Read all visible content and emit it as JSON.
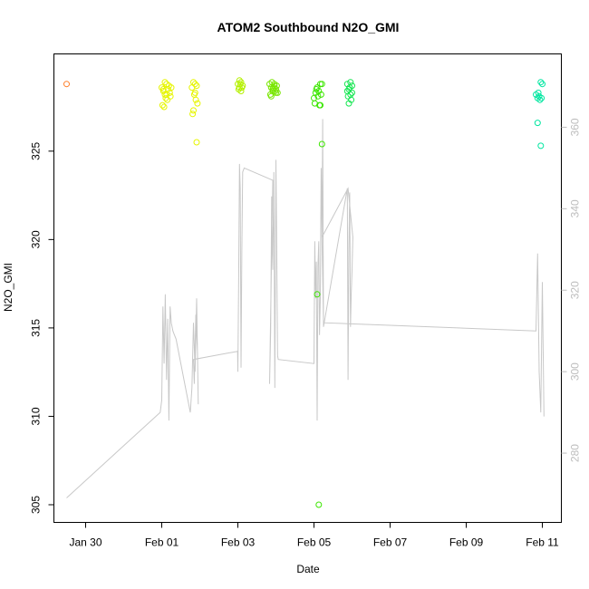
{
  "chart_data": {
    "type": "scatter",
    "title": "ATOM2 Southbound N2O_GMI",
    "xlabel": "Date",
    "ylabel": "N2O_GMI",
    "x_axis": {
      "type": "date",
      "range": [
        "2017-01-29T04:00",
        "2017-02-11T12:00"
      ],
      "ticks": [
        "Jan 30",
        "Feb 01",
        "Feb 03",
        "Feb 05",
        "Feb 07",
        "Feb 09",
        "Feb 11"
      ],
      "tick_dates": [
        "2017-01-30",
        "2017-02-01",
        "2017-02-03",
        "2017-02-05",
        "2017-02-07",
        "2017-02-09",
        "2017-02-11"
      ]
    },
    "y_axis_left": {
      "range": [
        304,
        330.5
      ],
      "ticks": [
        "305",
        "310",
        "315",
        "320",
        "325"
      ]
    },
    "y_axis_right": {
      "range": [
        263,
        378
      ],
      "ticks": [
        "280",
        "300",
        "320",
        "340",
        "360"
      ],
      "color": "#bdbdbd"
    },
    "grid": false,
    "legend": "none",
    "colors": {
      "orange": "#ff7f2a",
      "yellow": "#e6f500",
      "yellow_green": "#b4f000",
      "green": "#3ce600",
      "green2": "#14e650",
      "aqua": "#00e6a0",
      "line": "#c8c8c8"
    },
    "series": [
      {
        "type": "points",
        "color": "#ff7f2a",
        "x": [
          "2017-01-29T12:00"
        ],
        "y": [
          328.8
        ]
      },
      {
        "type": "points",
        "color": "#e6f500",
        "x": [
          "2017-02-01T00:00",
          "2017-02-01T01:00",
          "2017-02-01T02:00",
          "2017-02-01T03:00",
          "2017-02-01T04:00",
          "2017-02-01T05:00",
          "2017-02-01T06:00",
          "2017-02-01T02:30",
          "2017-02-01T03:30",
          "2017-02-01T01:30",
          "2017-02-01T04:30",
          "2017-02-01T00:30",
          "2017-02-01T05:30",
          "2017-02-01T02:00",
          "2017-02-01T01:00",
          "2017-02-01T03:00"
        ],
        "y": [
          328.6,
          328.4,
          328.2,
          328.8,
          328.5,
          328.3,
          328.6,
          328.0,
          327.9,
          327.5,
          328.7,
          327.6,
          328.1,
          328.9,
          328.5,
          328.2
        ]
      },
      {
        "type": "points",
        "color": "#e6f500",
        "x": [
          "2017-02-01T19:00",
          "2017-02-01T20:00",
          "2017-02-01T21:00",
          "2017-02-01T22:00",
          "2017-02-01T20:30",
          "2017-02-01T21:30",
          "2017-02-01T19:30",
          "2017-02-01T22:30",
          "2017-02-01T20:00",
          "2017-02-01T21:00",
          "2017-02-01T22:00"
        ],
        "y": [
          328.6,
          328.9,
          328.3,
          328.7,
          328.2,
          327.9,
          327.1,
          327.7,
          327.3,
          328.8,
          325.5
        ]
      },
      {
        "type": "points",
        "color": "#b4f000",
        "x": [
          "2017-02-03T00:00",
          "2017-02-03T01:00",
          "2017-02-03T02:00",
          "2017-02-03T03:00",
          "2017-02-03T00:30",
          "2017-02-03T01:30",
          "2017-02-03T02:30",
          "2017-02-03T01:00",
          "2017-02-03T02:00"
        ],
        "y": [
          328.8,
          328.6,
          328.9,
          328.7,
          328.5,
          328.8,
          328.6,
          329.0,
          328.4
        ]
      },
      {
        "type": "points",
        "color": "#78e600",
        "x": [
          "2017-02-03T20:00",
          "2017-02-03T21:00",
          "2017-02-03T22:00",
          "2017-02-03T23:00",
          "2017-02-04T00:00",
          "2017-02-04T01:00",
          "2017-02-03T20:30",
          "2017-02-03T21:30",
          "2017-02-03T22:30",
          "2017-02-03T23:30",
          "2017-02-04T00:30",
          "2017-02-03T21:00",
          "2017-02-03T22:00",
          "2017-02-03T23:00",
          "2017-02-04T00:00"
        ],
        "y": [
          328.8,
          328.6,
          328.4,
          328.7,
          328.5,
          328.3,
          328.2,
          328.9,
          328.6,
          328.4,
          328.7,
          328.1,
          328.5,
          328.8,
          328.3
        ]
      },
      {
        "type": "points",
        "color": "#3ce600",
        "x": [
          "2017-02-05T00:00",
          "2017-02-05T01:00",
          "2017-02-05T02:00",
          "2017-02-05T03:00",
          "2017-02-05T04:00",
          "2017-02-05T05:00",
          "2017-02-05T00:30",
          "2017-02-05T01:30",
          "2017-02-05T02:30",
          "2017-02-05T03:30",
          "2017-02-05T04:30",
          "2017-02-05T02:00",
          "2017-02-05T03:00",
          "2017-02-05T05:00",
          "2017-02-05T04:00"
        ],
        "y": [
          328.0,
          328.3,
          328.6,
          328.4,
          328.8,
          328.8,
          327.7,
          328.5,
          328.1,
          327.6,
          328.2,
          316.9,
          305.0,
          325.4,
          327.6
        ]
      },
      {
        "type": "points",
        "color": "#14e650",
        "x": [
          "2017-02-05T21:00",
          "2017-02-05T22:00",
          "2017-02-05T23:00",
          "2017-02-06T00:00",
          "2017-02-05T21:30",
          "2017-02-05T22:30",
          "2017-02-05T23:30",
          "2017-02-05T22:00",
          "2017-02-05T23:00",
          "2017-02-06T00:00",
          "2017-02-05T21:00"
        ],
        "y": [
          328.8,
          328.5,
          328.9,
          328.3,
          328.1,
          328.6,
          327.9,
          327.7,
          328.2,
          328.7,
          328.4
        ]
      },
      {
        "type": "points",
        "color": "#00e6a0",
        "x": [
          "2017-02-10T20:00",
          "2017-02-10T21:00",
          "2017-02-10T22:00",
          "2017-02-10T23:00",
          "2017-02-11T00:00",
          "2017-02-10T21:30",
          "2017-02-10T22:30",
          "2017-02-10T23:30",
          "2017-02-10T21:00",
          "2017-02-10T23:00"
        ],
        "y": [
          328.2,
          328.0,
          328.1,
          328.9,
          328.8,
          328.3,
          327.9,
          328.0,
          326.6,
          325.3
        ]
      },
      {
        "type": "line",
        "axis": "right",
        "color": "#c8c8c8",
        "x": [
          "2017-01-29T12:00",
          "2017-01-31T23:00",
          "2017-02-01T00:00",
          "2017-02-01T00:45",
          "2017-02-01T01:30",
          "2017-02-01T02:15",
          "2017-02-01T03:00",
          "2017-02-01T03:45",
          "2017-02-01T04:30",
          "2017-02-01T05:15",
          "2017-02-01T06:00",
          "2017-02-01T07:00",
          "2017-02-01T08:00",
          "2017-02-01T09:00",
          "2017-02-01T18:00",
          "2017-02-01T19:00",
          "2017-02-01T20:00",
          "2017-02-01T21:00",
          "2017-02-01T22:00",
          "2017-02-01T23:00",
          "2017-02-01T22:30",
          "2017-02-01T21:30",
          "2017-02-01T20:30",
          "2017-02-01T20:00",
          "2017-02-02T23:50",
          "2017-02-03T00:00",
          "2017-02-03T00:30",
          "2017-02-03T01:00",
          "2017-02-03T01:30",
          "2017-02-03T02:00",
          "2017-02-03T02:30",
          "2017-02-03T03:00",
          "2017-02-03T04:00",
          "2017-02-03T22:00",
          "2017-02-03T20:00",
          "2017-02-03T20:40",
          "2017-02-03T21:20",
          "2017-02-03T22:00",
          "2017-02-03T22:40",
          "2017-02-03T23:20",
          "2017-02-04T00:00",
          "2017-02-04T00:30",
          "2017-02-04T01:00",
          "2017-02-04T01:30",
          "2017-02-05T00:00",
          "2017-02-05T00:30",
          "2017-02-05T01:00",
          "2017-02-05T01:30",
          "2017-02-05T02:00",
          "2017-02-05T02:30",
          "2017-02-05T03:00",
          "2017-02-05T03:30",
          "2017-02-05T04:00",
          "2017-02-05T04:30",
          "2017-02-05T05:00",
          "2017-02-05T05:30",
          "2017-02-05T06:00",
          "2017-02-05T21:00",
          "2017-02-05T21:30",
          "2017-02-05T22:00",
          "2017-02-05T22:30",
          "2017-02-05T23:00",
          "2017-02-05T23:30",
          "2017-02-06T00:00",
          "2017-02-06T00:30",
          "2017-02-05T21:30",
          "2017-02-05T05:00",
          "2017-02-05T06:00",
          "2017-02-10T20:00",
          "2017-02-10T21:00",
          "2017-02-10T22:00",
          "2017-02-10T23:00",
          "2017-02-11T00:00",
          "2017-02-11T01:00"
        ],
        "y": [
          269,
          290,
          293,
          316,
          302,
          319,
          298,
          313,
          288,
          316,
          312,
          310,
          309,
          308,
          290,
          296,
          312,
          300,
          318,
          292,
          305,
          314,
          297,
          303,
          305,
          300,
          323,
          351,
          345,
          301,
          330,
          349,
          350,
          347,
          297,
          310,
          343,
          325,
          349,
          296,
          352,
          330,
          304,
          303,
          302,
          332,
          318,
          327,
          288,
          326,
          332,
          309,
          318,
          350,
          333,
          362,
          311,
          345,
          298,
          330,
          344,
          311,
          319,
          325,
          333,
          345,
          333,
          312,
          310,
          329,
          300,
          290,
          322,
          289
        ]
      }
    ]
  }
}
